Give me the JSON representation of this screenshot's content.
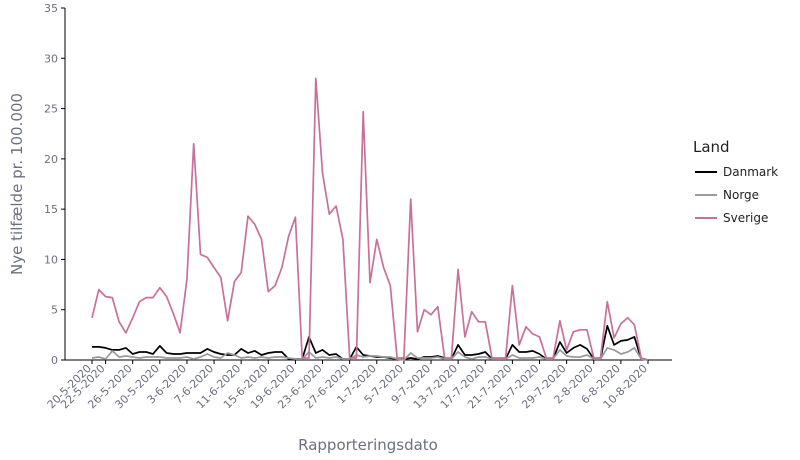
{
  "chart_data": {
    "type": "line",
    "xlabel": "Rapporteringsdato",
    "ylabel": "Nye tilfælde pr. 100.000",
    "ylim": [
      0,
      35
    ],
    "yticks": [
      0,
      5,
      10,
      15,
      20,
      25,
      30,
      35
    ],
    "xticks": [
      "20-5-2020",
      "22-5-2020",
      "26-5-2020",
      "30-5-2020",
      "3-6-2020",
      "7-6-2020",
      "11-6-2020",
      "15-6-2020",
      "19-6-2020",
      "23-6-2020",
      "27-6-2020",
      "1-7-2020",
      "5-7-2020",
      "9-7-2020",
      "13-7-2020",
      "17-7-2020",
      "21-7-2020",
      "25-7-2020",
      "29-7-2020",
      "2-8-2020",
      "6-8-2020",
      "10-8-2020"
    ],
    "legend_title": "Land",
    "legend_position": "right",
    "x_start": "2020-05-20",
    "x": [
      "20-5",
      "21-5",
      "22-5",
      "23-5",
      "24-5",
      "25-5",
      "26-5",
      "27-5",
      "28-5",
      "29-5",
      "30-5",
      "31-5",
      "1-6",
      "2-6",
      "3-6",
      "4-6",
      "5-6",
      "6-6",
      "7-6",
      "8-6",
      "9-6",
      "10-6",
      "11-6",
      "12-6",
      "13-6",
      "14-6",
      "15-6",
      "16-6",
      "17-6",
      "18-6",
      "19-6",
      "20-6",
      "21-6",
      "22-6",
      "23-6",
      "24-6",
      "25-6",
      "26-6",
      "27-6",
      "28-6",
      "29-6",
      "30-6",
      "1-7",
      "2-7",
      "3-7",
      "4-7",
      "5-7",
      "6-7",
      "7-7",
      "8-7",
      "9-7",
      "10-7",
      "11-7",
      "12-7",
      "13-7",
      "14-7",
      "15-7",
      "16-7",
      "17-7",
      "18-7",
      "19-7",
      "20-7",
      "21-7",
      "22-7",
      "23-7",
      "24-7",
      "25-7",
      "26-7",
      "27-7",
      "28-7",
      "29-7",
      "30-7",
      "31-7",
      "1-8",
      "2-8",
      "3-8",
      "4-8",
      "5-8",
      "6-8",
      "7-8",
      "8-8",
      "9-8",
      "10-8"
    ],
    "series": [
      {
        "name": "Danmark",
        "color": "#000000",
        "values": [
          1.3,
          1.3,
          1.2,
          1.0,
          1.0,
          1.2,
          0.6,
          0.8,
          0.8,
          0.6,
          1.4,
          0.7,
          0.6,
          0.6,
          0.7,
          0.7,
          0.7,
          1.1,
          0.8,
          0.6,
          0.5,
          0.5,
          1.1,
          0.7,
          0.9,
          0.5,
          0.7,
          0.8,
          0.8,
          0.1,
          0.1,
          0.1,
          2.3,
          0.7,
          1.0,
          0.5,
          0.6,
          0.1,
          0.1,
          1.3,
          0.5,
          0.4,
          0.3,
          0.3,
          0.2,
          0.1,
          0.1,
          0.2,
          0.1,
          0.3,
          0.3,
          0.4,
          0.2,
          0.1,
          1.5,
          0.5,
          0.5,
          0.6,
          0.8,
          0.1,
          0.1,
          0.1,
          1.5,
          0.8,
          0.8,
          0.9,
          0.6,
          0.1,
          0.1,
          1.8,
          0.7,
          1.2,
          1.5,
          1.1,
          0.1,
          0.1,
          3.4,
          1.5,
          1.9,
          2.0,
          2.3,
          0.1,
          0.0
        ]
      },
      {
        "name": "Norge",
        "color": "#9a9a9a",
        "values": [
          0.2,
          0.3,
          0.1,
          0.9,
          0.3,
          0.4,
          0.3,
          0.2,
          0.3,
          0.3,
          0.3,
          0.2,
          0.2,
          0.2,
          0.3,
          0.1,
          0.3,
          0.6,
          0.3,
          0.2,
          0.7,
          0.5,
          0.2,
          0.3,
          0.2,
          0.3,
          0.2,
          0.3,
          0.3,
          0.2,
          0.1,
          0.1,
          0.8,
          0.2,
          0.3,
          0.2,
          0.3,
          0.1,
          0.1,
          0.5,
          0.3,
          0.4,
          0.4,
          0.3,
          0.3,
          0.1,
          0.0,
          0.7,
          0.2,
          0.2,
          0.2,
          0.3,
          0.1,
          0.1,
          0.8,
          0.3,
          0.1,
          0.3,
          0.3,
          0.1,
          0.1,
          0.1,
          0.5,
          0.2,
          0.2,
          0.2,
          0.3,
          0.1,
          0.1,
          1.0,
          0.4,
          0.3,
          0.3,
          0.5,
          0.1,
          0.1,
          1.2,
          1.0,
          0.6,
          0.8,
          1.2,
          0.1,
          0.0
        ]
      },
      {
        "name": "Sverige",
        "color": "#c8709a",
        "values": [
          4.2,
          7.0,
          6.3,
          6.2,
          3.8,
          2.7,
          4.2,
          5.8,
          6.2,
          6.2,
          7.2,
          6.3,
          4.6,
          2.7,
          8.0,
          21.5,
          10.5,
          10.2,
          9.2,
          8.2,
          3.9,
          7.8,
          8.7,
          14.3,
          13.5,
          12.0,
          6.8,
          7.4,
          9.2,
          12.3,
          14.2,
          0.2,
          0.2,
          28.0,
          18.6,
          14.5,
          15.3,
          12.0,
          0.2,
          0.2,
          24.7,
          7.7,
          12.0,
          9.2,
          7.4,
          0.2,
          0.2,
          16.0,
          2.8,
          5.0,
          4.5,
          5.3,
          0.2,
          0.2,
          9.0,
          2.3,
          4.8,
          3.8,
          3.8,
          0.2,
          0.2,
          0.2,
          7.4,
          1.5,
          3.3,
          2.6,
          2.3,
          0.2,
          0.2,
          3.9,
          1.0,
          2.8,
          3.0,
          3.0,
          0.2,
          0.2,
          5.8,
          2.2,
          3.6,
          4.2,
          3.5,
          0.2,
          0.0
        ]
      }
    ]
  }
}
